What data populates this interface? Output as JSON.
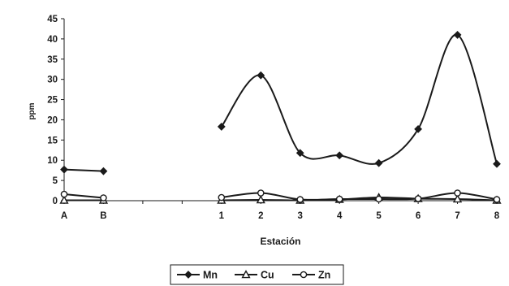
{
  "chart_data": {
    "type": "line",
    "title": "",
    "xlabel": "Estación",
    "ylabel": "ppm",
    "categories": [
      "A",
      "B",
      "",
      "",
      "1",
      "2",
      "3",
      "4",
      "5",
      "6",
      "7",
      "8"
    ],
    "ylim": [
      0,
      45
    ],
    "yticks": [
      0,
      5,
      10,
      15,
      20,
      25,
      30,
      35,
      40,
      45
    ],
    "grid": false,
    "legend_position": "bottom",
    "segments": [
      [
        0,
        1
      ],
      [
        4,
        11
      ]
    ],
    "series": [
      {
        "name": "Mn",
        "marker": "diamond",
        "color": "#1a1a1a",
        "values": [
          7.7,
          7.3,
          null,
          null,
          18.3,
          31,
          11.8,
          11.2,
          9.3,
          17.7,
          41,
          9.1
        ]
      },
      {
        "name": "Cu",
        "marker": "triangle",
        "color": "#1a1a1a",
        "values": [
          0.1,
          0.1,
          null,
          null,
          0.1,
          0.2,
          0.1,
          0.3,
          0.8,
          0.5,
          0.4,
          0.1
        ]
      },
      {
        "name": "Zn",
        "marker": "circle",
        "color": "#1a1a1a",
        "values": [
          1.6,
          0.7,
          null,
          null,
          0.8,
          1.9,
          0.3,
          0.4,
          0.4,
          0.5,
          1.9,
          0.3
        ]
      }
    ]
  }
}
